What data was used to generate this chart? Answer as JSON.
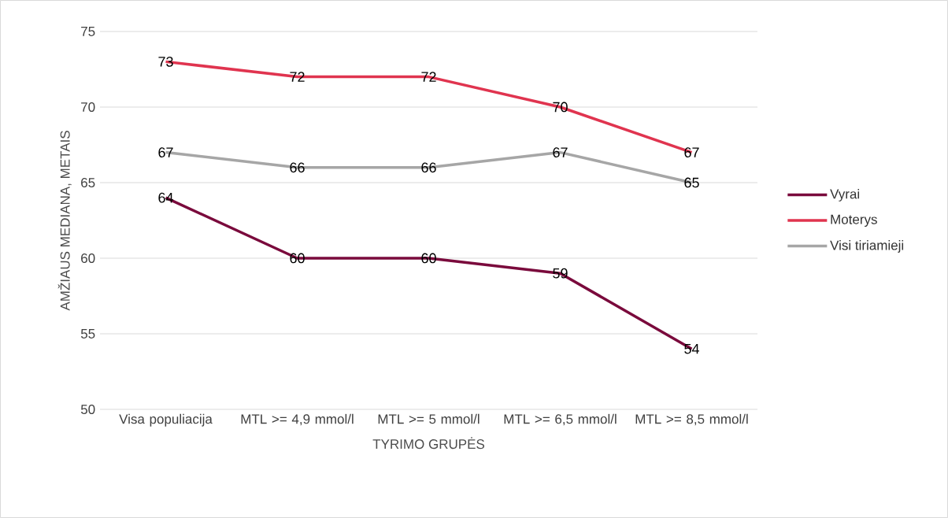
{
  "chart_data": {
    "type": "line",
    "xlabel": "TYRIMO GRUPĖS",
    "ylabel": "AMŽIAUS MEDIANA, METAIS",
    "categories": [
      "Visa populiacija",
      "MTL >= 4,9 mmol/l",
      "MTL >= 5 mmol/l",
      "MTL >= 6,5 mmol/l",
      "MTL >= 8,5 mmol/l"
    ],
    "series": [
      {
        "name": "Vyrai",
        "color": "#7a0a3c",
        "values": [
          64,
          60,
          60,
          59,
          54
        ]
      },
      {
        "name": "Moterys",
        "color": "#e0344f",
        "values": [
          73,
          72,
          72,
          70,
          67
        ]
      },
      {
        "name": "Visi tiriamieji",
        "color": "#a6a6a6",
        "values": [
          67,
          66,
          66,
          67,
          65
        ]
      }
    ],
    "ylim": [
      50,
      75
    ],
    "yticks": [
      50,
      55,
      60,
      65,
      70,
      75
    ],
    "grid": "y",
    "legend": "right",
    "data_labels": true,
    "marker": "none",
    "line_style": "solid"
  }
}
